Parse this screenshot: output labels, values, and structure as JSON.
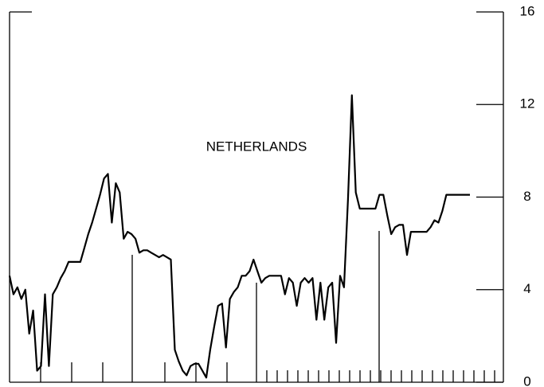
{
  "chart_data": {
    "type": "line",
    "title": "NETHERLANDS",
    "series": [
      {
        "name": null,
        "color": "#000000",
        "values": [
          4.6,
          3.8,
          4.1,
          3.6,
          4.0,
          2.1,
          3.1,
          0.5,
          0.7,
          3.8,
          0.7,
          3.8,
          4.1,
          4.5,
          4.8,
          5.2,
          5.2,
          5.2,
          5.2,
          5.8,
          6.4,
          6.9,
          7.5,
          8.1,
          8.8,
          9.0,
          6.9,
          8.6,
          8.2,
          6.2,
          6.5,
          6.4,
          6.2,
          5.6,
          5.7,
          5.7,
          5.6,
          5.5,
          5.4,
          5.5,
          5.4,
          5.3,
          1.4,
          0.9,
          0.5,
          0.3,
          0.7,
          0.8,
          0.8,
          0.5,
          0.2,
          1.4,
          2.4,
          3.3,
          3.4,
          1.5,
          3.6,
          3.9,
          4.1,
          4.6,
          4.6,
          4.8,
          5.3,
          4.8,
          4.3,
          4.5,
          4.6,
          4.6,
          4.6,
          4.6,
          3.8,
          4.5,
          4.3,
          3.3,
          4.3,
          4.5,
          4.3,
          4.5,
          2.7,
          4.3,
          2.7,
          4.1,
          4.3,
          1.7,
          4.6,
          4.1,
          7.9,
          12.4,
          8.2,
          7.5,
          7.5,
          7.5,
          7.5,
          7.5,
          8.1,
          8.1,
          7.2,
          6.4,
          6.7,
          6.8,
          6.8,
          5.5,
          6.5,
          6.5,
          6.5,
          6.5,
          6.5,
          6.7,
          7.0,
          6.9,
          7.4,
          8.1,
          8.1,
          8.1,
          8.1,
          8.1,
          8.1,
          8.1
        ]
      }
    ],
    "ylim": [
      0,
      16
    ],
    "yticks": [
      0,
      4,
      8,
      12,
      16
    ],
    "y_axis_side": "right"
  }
}
